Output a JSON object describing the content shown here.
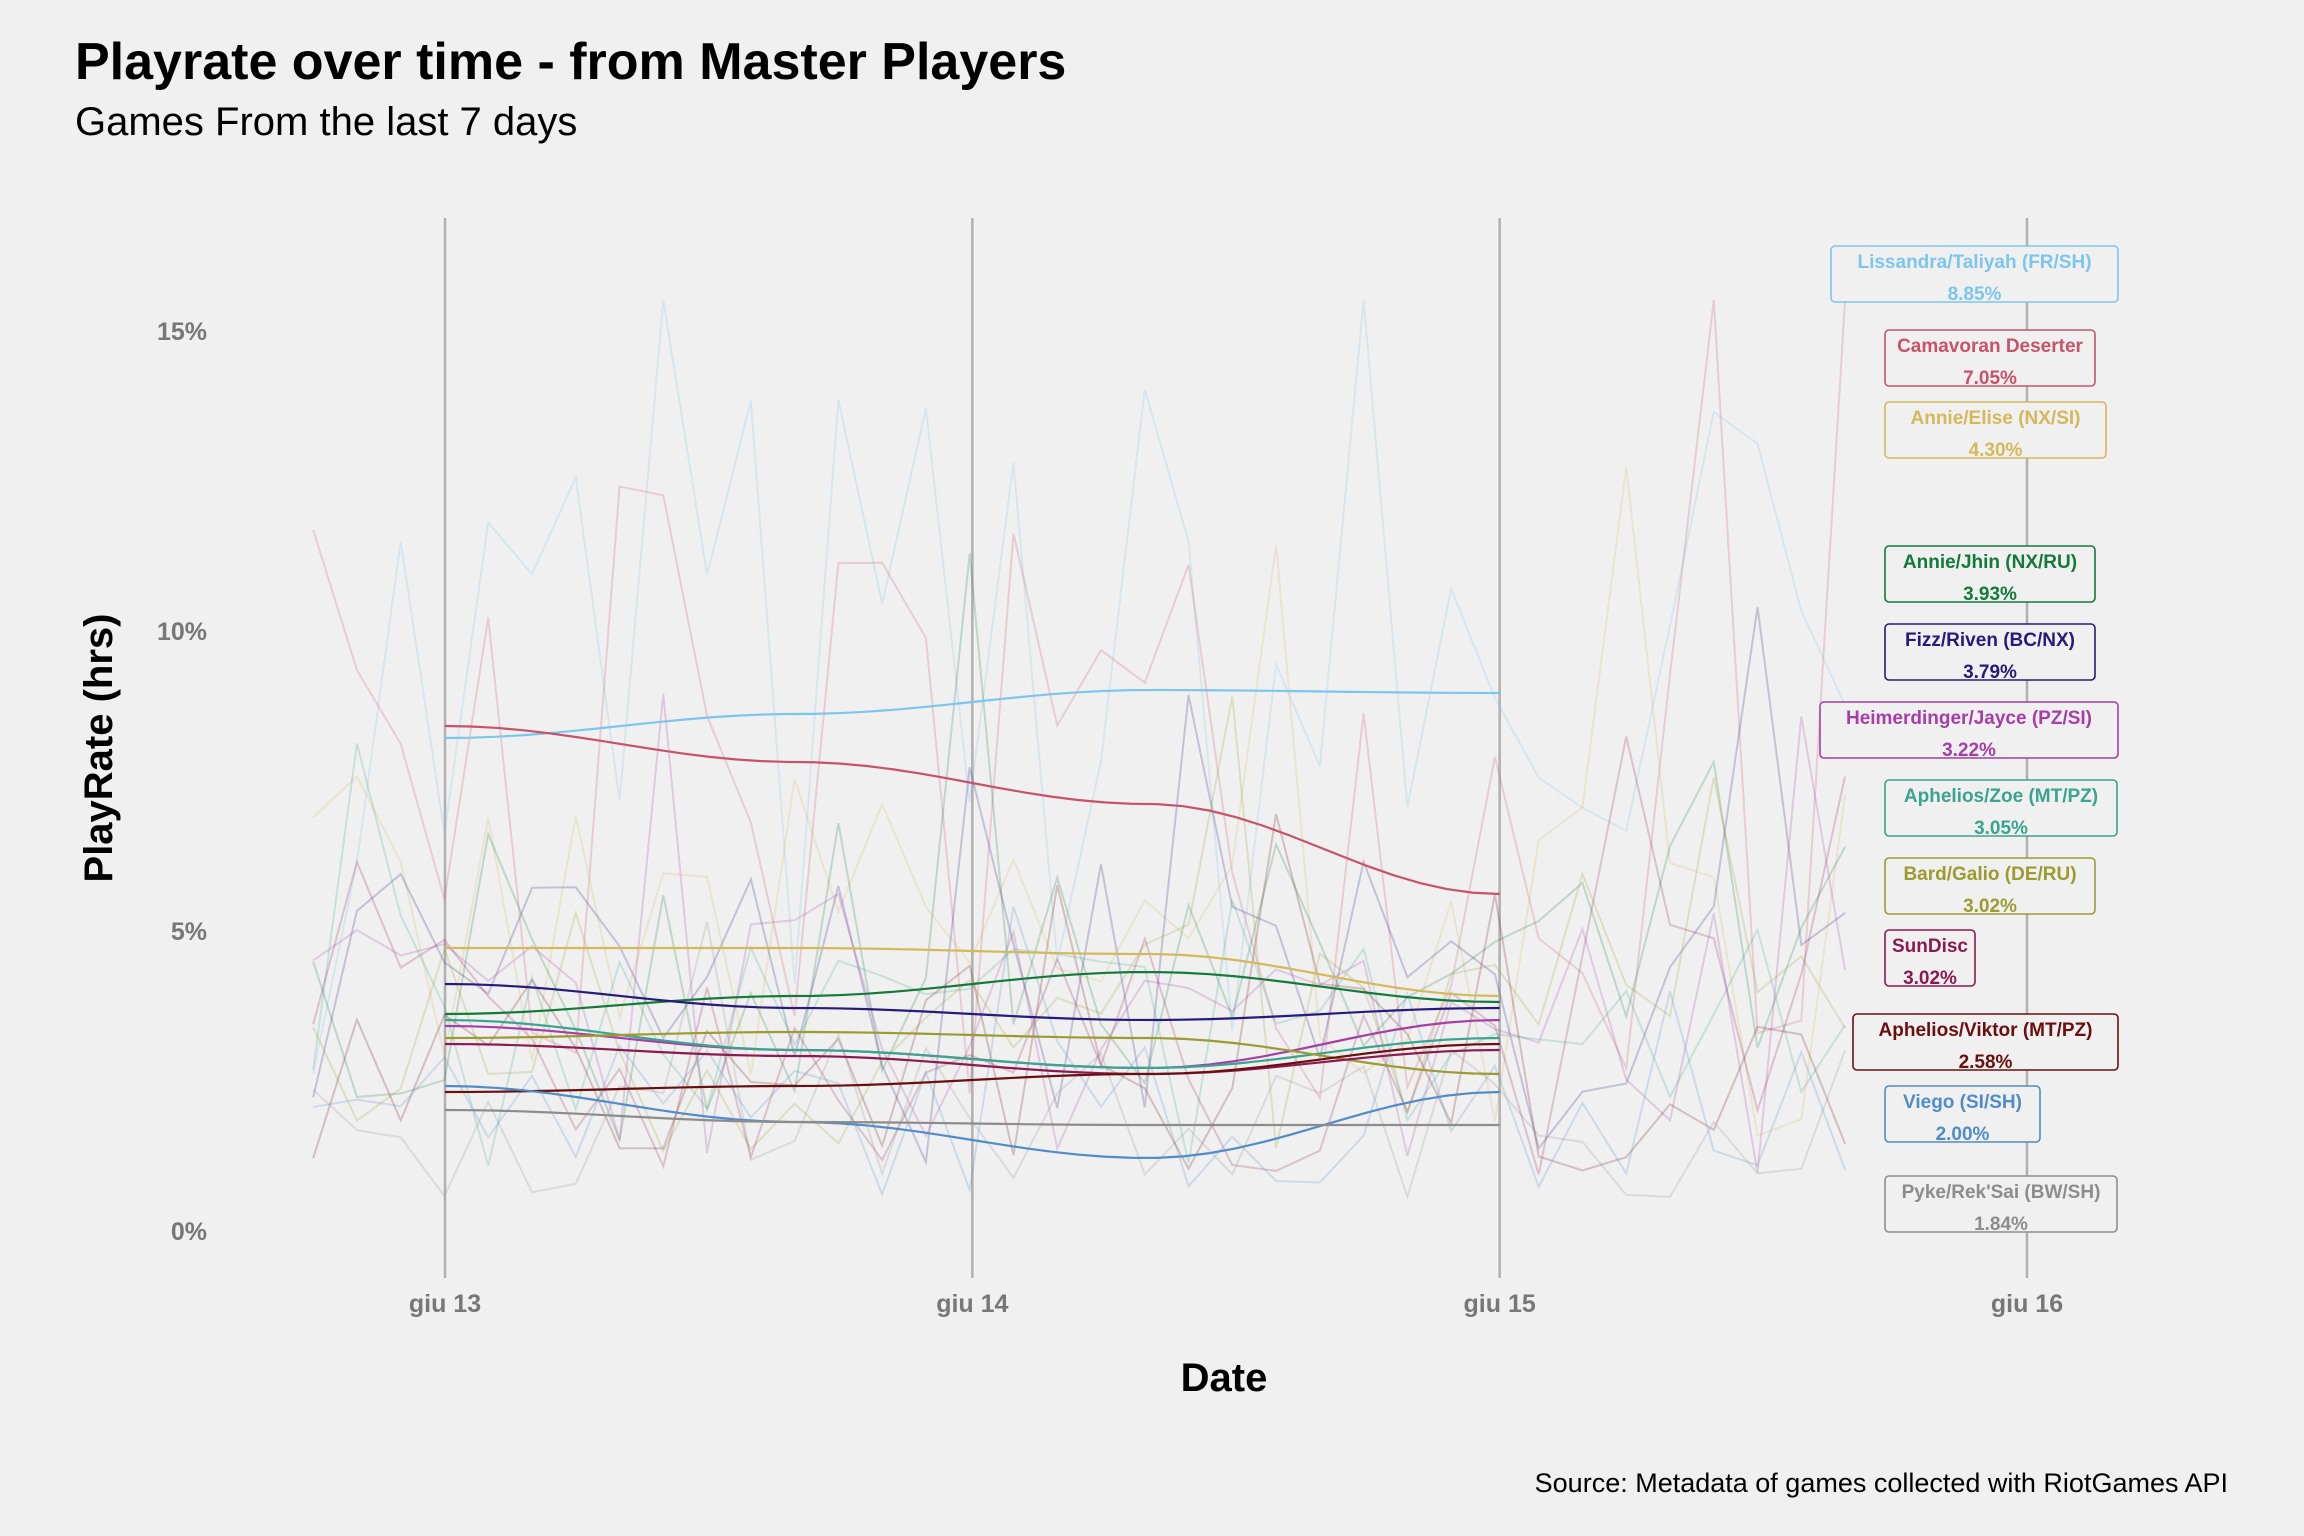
{
  "chart_data": {
    "type": "line",
    "title": "Playrate over time - from Master Players",
    "subtitle": "Games From the last 7 days",
    "xlabel": "Date",
    "ylabel": "PlayRate (hrs)",
    "source": "Source: Metadata of games collected with RiotGames API",
    "x_ticks": [
      "giu 13",
      "giu 14",
      "giu 15",
      "giu 16"
    ],
    "y_ticks": [
      "0%",
      "5%",
      "10%",
      "15%"
    ],
    "y_tick_values": [
      0,
      5,
      10,
      15
    ],
    "xlim_days": [
      12.75,
      16.1
    ],
    "ylim": [
      -0.6,
      16.8
    ],
    "grid": "vertical lines at date ticks",
    "legend": "none; series labeled with boxes at right edge",
    "smooth_range_days": [
      13,
      15
    ],
    "series": [
      {
        "name": "Lissandra/Taliyah (FR/SH)",
        "label": "8.85%",
        "color": "#7cc6ee",
        "smooth": [
          8.2,
          8.6,
          9.0,
          8.95
        ]
      },
      {
        "name": "Camavoran Deserter",
        "label": "7.05%",
        "color": "#c8526a",
        "smooth": [
          8.4,
          7.8,
          7.1,
          5.6
        ]
      },
      {
        "name": "Annie/Elise (NX/SI)",
        "label": "4.30%",
        "color": "#d4b85a",
        "smooth": [
          4.7,
          4.7,
          4.6,
          3.9
        ]
      },
      {
        "name": "Annie/Jhin (NX/RU)",
        "label": "3.93%",
        "color": "#137a3a",
        "smooth": [
          3.6,
          3.9,
          4.3,
          3.8
        ]
      },
      {
        "name": "Fizz/Riven (BC/NX)",
        "label": "3.79%",
        "color": "#261a7a",
        "smooth": [
          4.1,
          3.7,
          3.5,
          3.7
        ]
      },
      {
        "name": "Heimerdinger/Jayce (PZ/SI)",
        "label": "3.22%",
        "color": "#a63ea8",
        "smooth": [
          3.4,
          3.0,
          2.7,
          3.5
        ]
      },
      {
        "name": "Aphelios/Zoe (MT/PZ)",
        "label": "3.05%",
        "color": "#3aa48e",
        "smooth": [
          3.5,
          3.0,
          2.7,
          3.2
        ]
      },
      {
        "name": "Bard/Galio (DE/RU)",
        "label": "3.02%",
        "color": "#9c9a30",
        "smooth": [
          3.2,
          3.3,
          3.2,
          2.6
        ]
      },
      {
        "name": "SunDisc",
        "label": "3.02%",
        "color": "#8a1a50",
        "smooth": [
          3.1,
          2.9,
          2.6,
          3.0
        ]
      },
      {
        "name": "Aphelios/Viktor (MT/PZ)",
        "label": "2.58%",
        "color": "#6a0f0f",
        "smooth": [
          2.3,
          2.4,
          2.6,
          3.1
        ]
      },
      {
        "name": "Viego (SI/SH)",
        "label": "2.00%",
        "color": "#4f8cc8",
        "smooth": [
          2.4,
          1.8,
          1.2,
          2.3
        ]
      },
      {
        "name": "Pyke/Rek'Sai (BW/SH)",
        "label": "1.84%",
        "color": "#8c8c8c",
        "smooth": [
          2.0,
          1.8,
          1.75,
          1.75
        ]
      }
    ],
    "label_anchors_pct": [
      15.8,
      14.4,
      13.2,
      10.8,
      9.5,
      8.2,
      6.9,
      5.6,
      4.4,
      3.0,
      1.8,
      0.3
    ]
  }
}
